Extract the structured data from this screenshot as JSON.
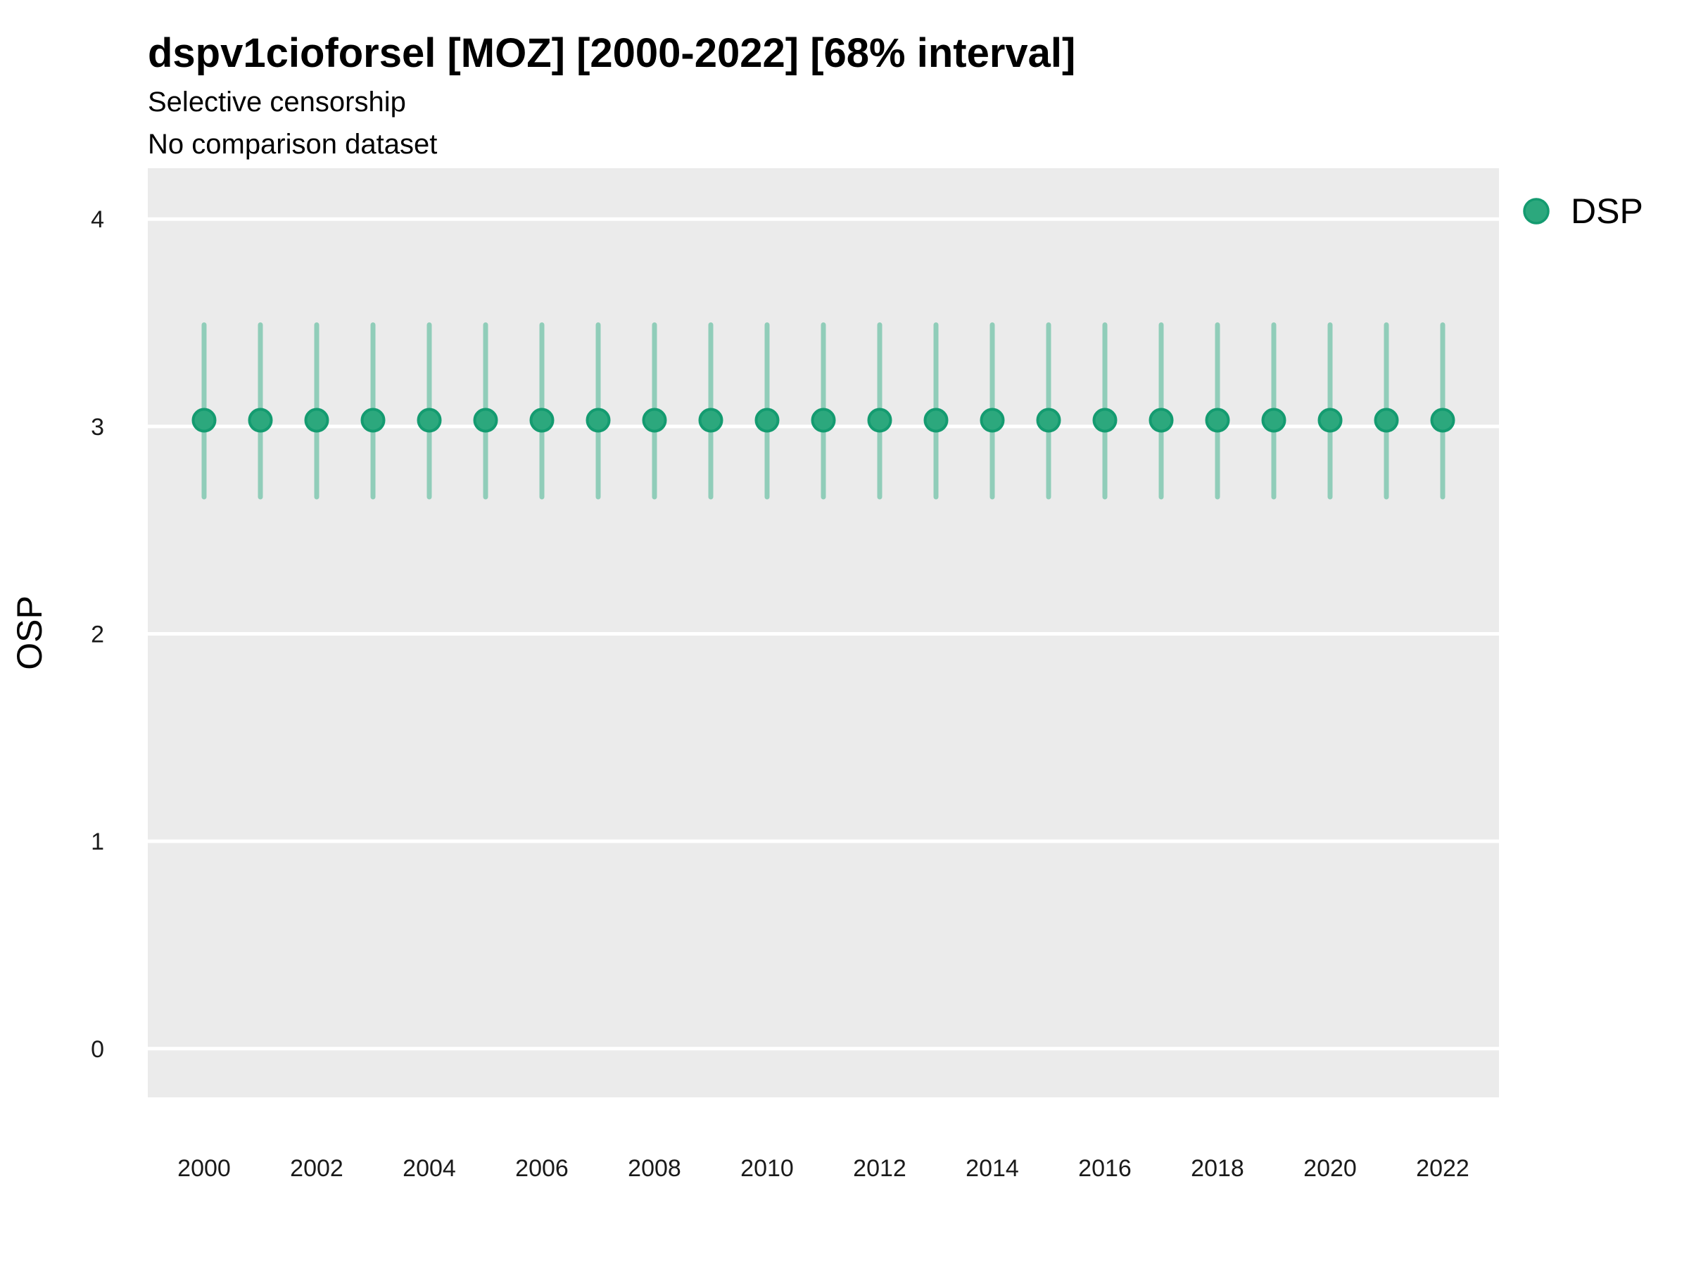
{
  "page": {
    "background": "#FFFFFF"
  },
  "chart_data": {
    "type": "pointrange",
    "title": "dspv1cioforsel [MOZ] [2000-2022] [68% interval]",
    "subtitle": [
      "Selective censorship",
      "No comparison dataset"
    ],
    "ylabel": "OSP",
    "xlabel": "",
    "legend": {
      "position": "right",
      "items": [
        {
          "label": "DSP",
          "color": "#2CA87D"
        }
      ]
    },
    "colors": {
      "panel_bg": "#EBEBEB",
      "grid": "#FFFFFF",
      "point_fill": "#2CA87D",
      "point_stroke": "#149B70",
      "interval": "rgba(34,168,124,0.45)",
      "axis_text": "#1A1A1A",
      "text": "#000000"
    },
    "grid": "major-horizontal",
    "xlim": [
      1999.0,
      2023.0
    ],
    "ylim": [
      -0.235,
      4.245
    ],
    "yticks": [
      0,
      1,
      2,
      3,
      4
    ],
    "xticks": [
      2000,
      2002,
      2004,
      2006,
      2008,
      2010,
      2012,
      2014,
      2016,
      2018,
      2020,
      2022
    ],
    "x": [
      2000,
      2001,
      2002,
      2003,
      2004,
      2005,
      2006,
      2007,
      2008,
      2009,
      2010,
      2011,
      2012,
      2013,
      2014,
      2015,
      2016,
      2017,
      2018,
      2019,
      2020,
      2021,
      2022
    ],
    "series": [
      {
        "name": "DSP",
        "values": [
          3.03,
          3.03,
          3.03,
          3.03,
          3.03,
          3.03,
          3.03,
          3.03,
          3.03,
          3.03,
          3.03,
          3.03,
          3.03,
          3.03,
          3.03,
          3.03,
          3.03,
          3.03,
          3.03,
          3.03,
          3.03,
          3.03,
          3.03
        ],
        "lower": [
          2.66,
          2.66,
          2.66,
          2.66,
          2.66,
          2.66,
          2.66,
          2.66,
          2.66,
          2.66,
          2.66,
          2.66,
          2.66,
          2.66,
          2.66,
          2.66,
          2.66,
          2.66,
          2.66,
          2.66,
          2.66,
          2.66,
          2.66
        ],
        "upper": [
          3.49,
          3.49,
          3.49,
          3.49,
          3.49,
          3.49,
          3.49,
          3.49,
          3.49,
          3.49,
          3.49,
          3.49,
          3.49,
          3.49,
          3.49,
          3.49,
          3.49,
          3.49,
          3.49,
          3.49,
          3.49,
          3.49,
          3.49
        ]
      }
    ]
  }
}
